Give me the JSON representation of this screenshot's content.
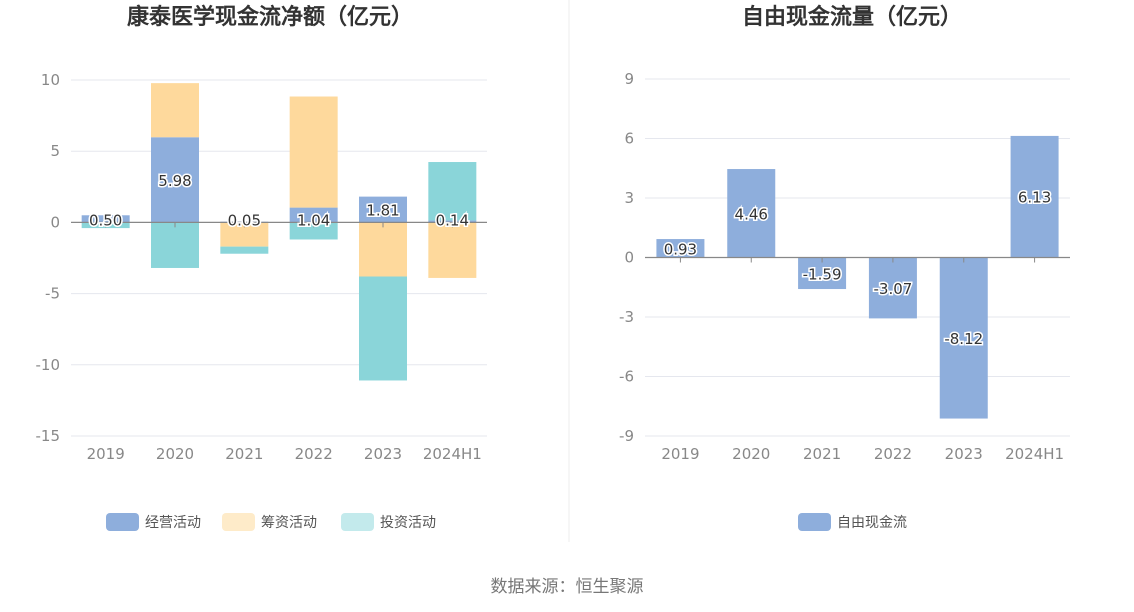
{
  "colors": {
    "operating": "#8eaedc",
    "financing": "#fed99c",
    "investing": "#8ad5d9",
    "free_cf": "#8eaedc",
    "grid": "#e5e7ee",
    "axis": "#888888",
    "divider": "#eeeeee",
    "legend_financing_swatch": "#feebc9",
    "legend_investing_swatch": "#c3eaec"
  },
  "source": "数据来源：恒生聚源",
  "chart_data": [
    {
      "type": "bar",
      "stacked": true,
      "title": "康泰医学现金流净额（亿元）",
      "categories": [
        "2019",
        "2020",
        "2021",
        "2022",
        "2023",
        "2024H1"
      ],
      "ylim": [
        -15,
        10
      ],
      "yticks": [
        "10",
        "5",
        "0",
        "-5",
        "-10",
        "-15"
      ],
      "ytick_values": [
        10,
        5,
        0,
        -5,
        -10,
        -15
      ],
      "grid": true,
      "legend_position": "bottom",
      "series": [
        {
          "name": "经营活动",
          "color_key": "operating",
          "values": [
            0.5,
            5.98,
            0.05,
            1.04,
            1.81,
            0.14
          ],
          "labels": [
            "0.50",
            "5.98",
            "0.05",
            "1.04",
            "1.81",
            "0.14"
          ]
        },
        {
          "name": "筹资活动",
          "color_key": "financing",
          "values": [
            0.0,
            3.8,
            -1.7,
            7.8,
            -3.8,
            -3.9
          ]
        },
        {
          "name": "投资活动",
          "color_key": "investing",
          "values": [
            -0.4,
            -3.2,
            -0.5,
            -1.2,
            -7.3,
            4.1
          ]
        }
      ]
    },
    {
      "type": "bar",
      "title": "自由现金流量（亿元）",
      "categories": [
        "2019",
        "2020",
        "2021",
        "2022",
        "2023",
        "2024H1"
      ],
      "ylim": [
        -9,
        9
      ],
      "yticks": [
        "9",
        "6",
        "3",
        "0",
        "-3",
        "-6",
        "-9"
      ],
      "ytick_values": [
        9,
        6,
        3,
        0,
        -3,
        -6,
        -9
      ],
      "grid": true,
      "legend_position": "bottom",
      "series": [
        {
          "name": "自由现金流",
          "color_key": "free_cf",
          "values": [
            0.93,
            4.46,
            -1.59,
            -3.07,
            -8.12,
            6.13
          ],
          "labels": [
            "0.93",
            "4.46",
            "-1.59",
            "-3.07",
            "-8.12",
            "6.13"
          ]
        }
      ]
    }
  ]
}
